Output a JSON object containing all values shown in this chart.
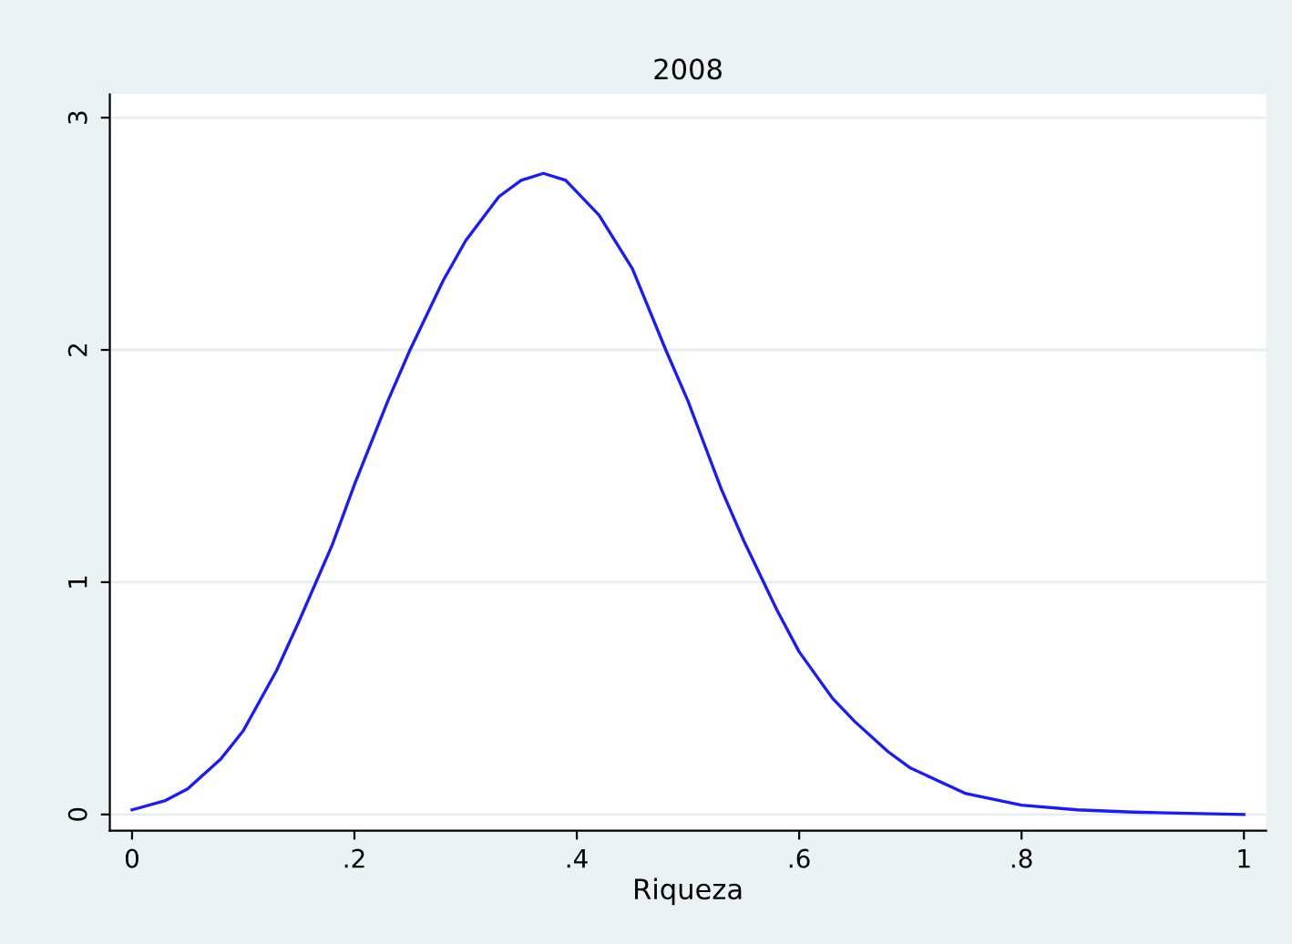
{
  "chart_data": {
    "type": "line",
    "title": "2008",
    "xlabel": "Riqueza",
    "series": [
      {
        "color": "#1a1aff",
        "x": [
          0,
          0.03,
          0.05,
          0.08,
          0.1,
          0.13,
          0.15,
          0.18,
          0.2,
          0.23,
          0.25,
          0.28,
          0.3,
          0.33,
          0.35,
          0.37,
          0.39,
          0.42,
          0.45,
          0.48,
          0.5,
          0.53,
          0.55,
          0.58,
          0.6,
          0.63,
          0.65,
          0.68,
          0.7,
          0.75,
          0.8,
          0.85,
          0.9,
          0.95,
          1
        ],
        "values": [
          0.02,
          0.06,
          0.11,
          0.24,
          0.36,
          0.62,
          0.83,
          1.16,
          1.42,
          1.78,
          2.0,
          2.3,
          2.47,
          2.66,
          2.73,
          2.76,
          2.73,
          2.58,
          2.35,
          2.0,
          1.78,
          1.4,
          1.18,
          0.88,
          0.7,
          0.5,
          0.4,
          0.27,
          0.2,
          0.09,
          0.04,
          0.02,
          0.01,
          0.005,
          0
        ]
      }
    ],
    "xlim": [
      -0.02,
      1.02
    ],
    "ylim": [
      -0.07,
      3.1
    ],
    "xticks": [
      {
        "value": 0,
        "label": "0"
      },
      {
        "value": 0.2,
        "label": ".2"
      },
      {
        "value": 0.4,
        "label": ".4"
      },
      {
        "value": 0.6,
        "label": ".6"
      },
      {
        "value": 0.8,
        "label": ".8"
      },
      {
        "value": 1,
        "label": "1"
      }
    ],
    "yticks": [
      0,
      1,
      2,
      3
    ],
    "grid": "y"
  }
}
